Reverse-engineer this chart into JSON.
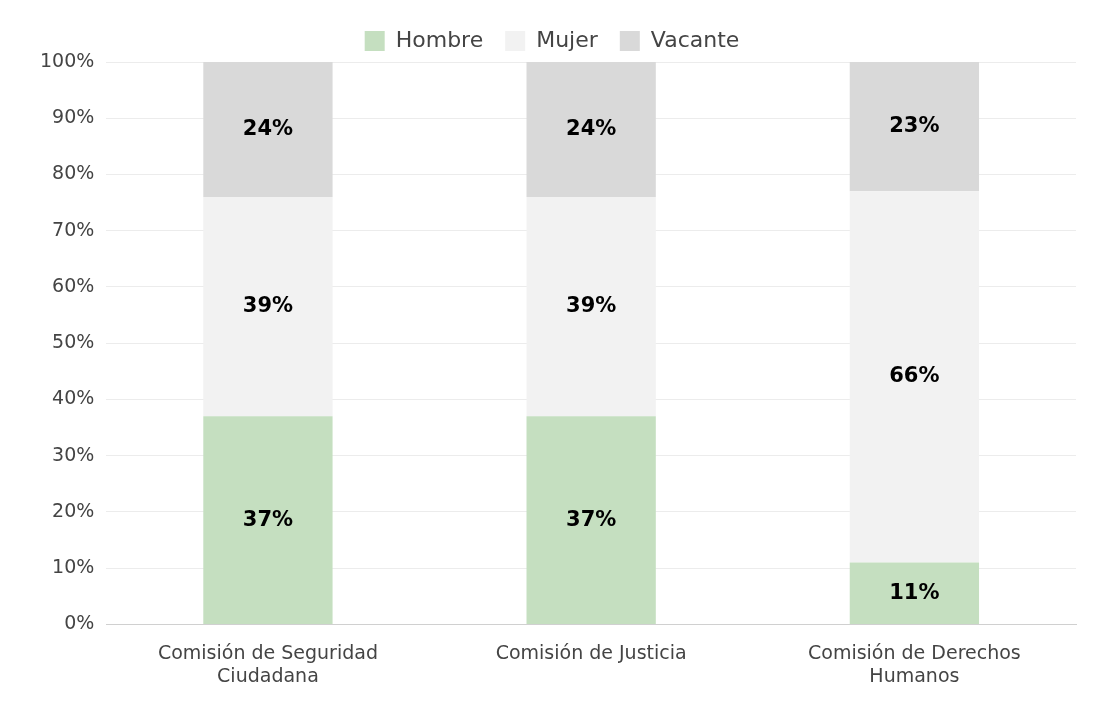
{
  "chart_data": {
    "type": "bar",
    "stacked": true,
    "categories": [
      "Comisión de Seguridad Ciudadana",
      "Comisión de Justicia",
      "Comisión de Derechos Humanos"
    ],
    "series": [
      {
        "name": "Hombre",
        "color": "#c5dfc0",
        "values": [
          37,
          37,
          11
        ],
        "value_labels": [
          "37%",
          "37%",
          "11%"
        ]
      },
      {
        "name": "Mujer",
        "color": "#f2f2f2",
        "values": [
          39,
          39,
          66
        ],
        "value_labels": [
          "39%",
          "39%",
          "66%"
        ]
      },
      {
        "name": "Vacante",
        "color": "#d9d9d9",
        "values": [
          24,
          24,
          23
        ],
        "value_labels": [
          "24%",
          "24%",
          "23%"
        ]
      }
    ],
    "ylim": [
      0,
      100
    ],
    "yticks": [
      {
        "value": 0,
        "label": "0%"
      },
      {
        "value": 10,
        "label": "10%"
      },
      {
        "value": 20,
        "label": "20%"
      },
      {
        "value": 30,
        "label": "30%"
      },
      {
        "value": 40,
        "label": "40%"
      },
      {
        "value": 50,
        "label": "50%"
      },
      {
        "value": 60,
        "label": "60%"
      },
      {
        "value": 70,
        "label": "70%"
      },
      {
        "value": 80,
        "label": "80%"
      },
      {
        "value": 90,
        "label": "90%"
      },
      {
        "value": 100,
        "label": "100%"
      }
    ],
    "grid": "y",
    "legend": "top"
  }
}
